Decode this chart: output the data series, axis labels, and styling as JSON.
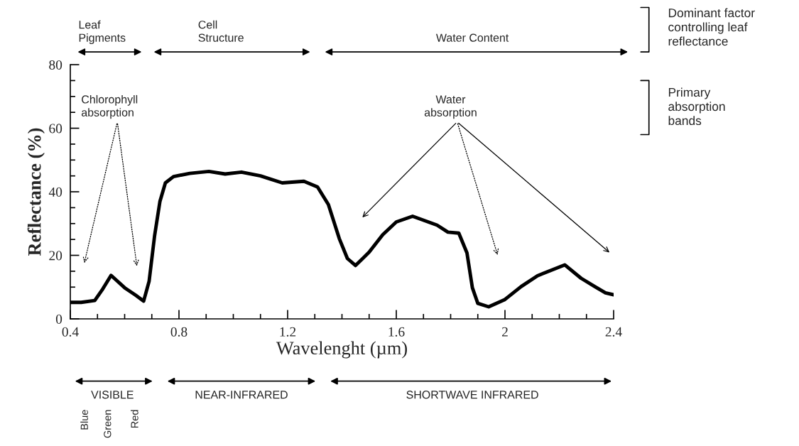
{
  "chart_data": {
    "type": "line",
    "xlabel": "Wavelenght (µm)",
    "ylabel": "Reflectance (%)",
    "x": [
      0.4,
      0.44,
      0.49,
      0.52,
      0.55,
      0.6,
      0.64,
      0.67,
      0.69,
      0.71,
      0.73,
      0.75,
      0.78,
      0.84,
      0.91,
      0.97,
      1.03,
      1.1,
      1.18,
      1.26,
      1.31,
      1.35,
      1.39,
      1.42,
      1.45,
      1.5,
      1.55,
      1.6,
      1.66,
      1.75,
      1.79,
      1.83,
      1.86,
      1.88,
      1.9,
      1.94,
      2.0,
      2.06,
      2.12,
      2.22,
      2.28,
      2.33,
      2.37,
      2.4
    ],
    "series": [
      {
        "color": "#000000",
        "values": [
          5.2,
          5.2,
          5.8,
          9.5,
          13.7,
          9.8,
          7.5,
          5.6,
          11.8,
          26,
          37,
          42.8,
          44.8,
          45.8,
          46.4,
          45.6,
          46.2,
          45,
          42.8,
          43.3,
          41.5,
          36,
          25.3,
          19,
          16.8,
          21,
          26.5,
          30.5,
          32.3,
          29.5,
          27.3,
          27,
          20.8,
          9.8,
          4.9,
          3.8,
          6.1,
          10.2,
          13.6,
          17,
          12.8,
          10.2,
          8.2,
          7.6
        ]
      }
    ],
    "line_style": "solid",
    "xlim": [
      0.4,
      2.4
    ],
    "ylim": [
      0,
      80
    ],
    "xticks": [
      0.4,
      {
        "value": 0.5,
        "label": null
      },
      {
        "value": 0.6,
        "label": null
      },
      {
        "value": 0.7,
        "label": null
      },
      0.8,
      {
        "value": 0.9,
        "label": null
      },
      {
        "value": 1.0,
        "label": null
      },
      {
        "value": 1.1,
        "label": null
      },
      1.2,
      {
        "value": 1.3,
        "label": null
      },
      {
        "value": 1.4,
        "label": null
      },
      {
        "value": 1.5,
        "label": null
      },
      1.6,
      {
        "value": 1.7,
        "label": null
      },
      {
        "value": 1.8,
        "label": null
      },
      {
        "value": 1.9,
        "label": null
      },
      2,
      {
        "value": 2.1,
        "label": null
      },
      {
        "value": 2.2,
        "label": null
      },
      {
        "value": 2.3,
        "label": null
      },
      2.4
    ],
    "yticks": [
      0,
      {
        "value": 5,
        "label": null
      },
      {
        "value": 10,
        "label": null
      },
      {
        "value": 15,
        "label": null
      },
      20,
      {
        "value": 25,
        "label": null
      },
      {
        "value": 30,
        "label": null
      },
      {
        "value": 35,
        "label": null
      },
      40,
      {
        "value": 45,
        "label": null
      },
      {
        "value": 50,
        "label": null
      },
      {
        "value": 55,
        "label": null
      },
      60,
      {
        "value": 65,
        "label": null
      },
      {
        "value": 70,
        "label": null
      },
      {
        "value": 75,
        "label": null
      },
      80
    ],
    "annotations": [
      "Leaf\nPigments",
      "Cell\nStructure",
      "Water Content",
      "Dominant factor\ncontrolling leaf\nreflectance",
      "Primary\nabsorption\nbands",
      "Chlorophyll\nabsorption",
      "Water\nabsorption",
      "VISIBLE",
      "NEAR-INFRARED",
      "SHORTWAVE INFRARED",
      "Blue",
      "Green",
      "Red"
    ]
  }
}
